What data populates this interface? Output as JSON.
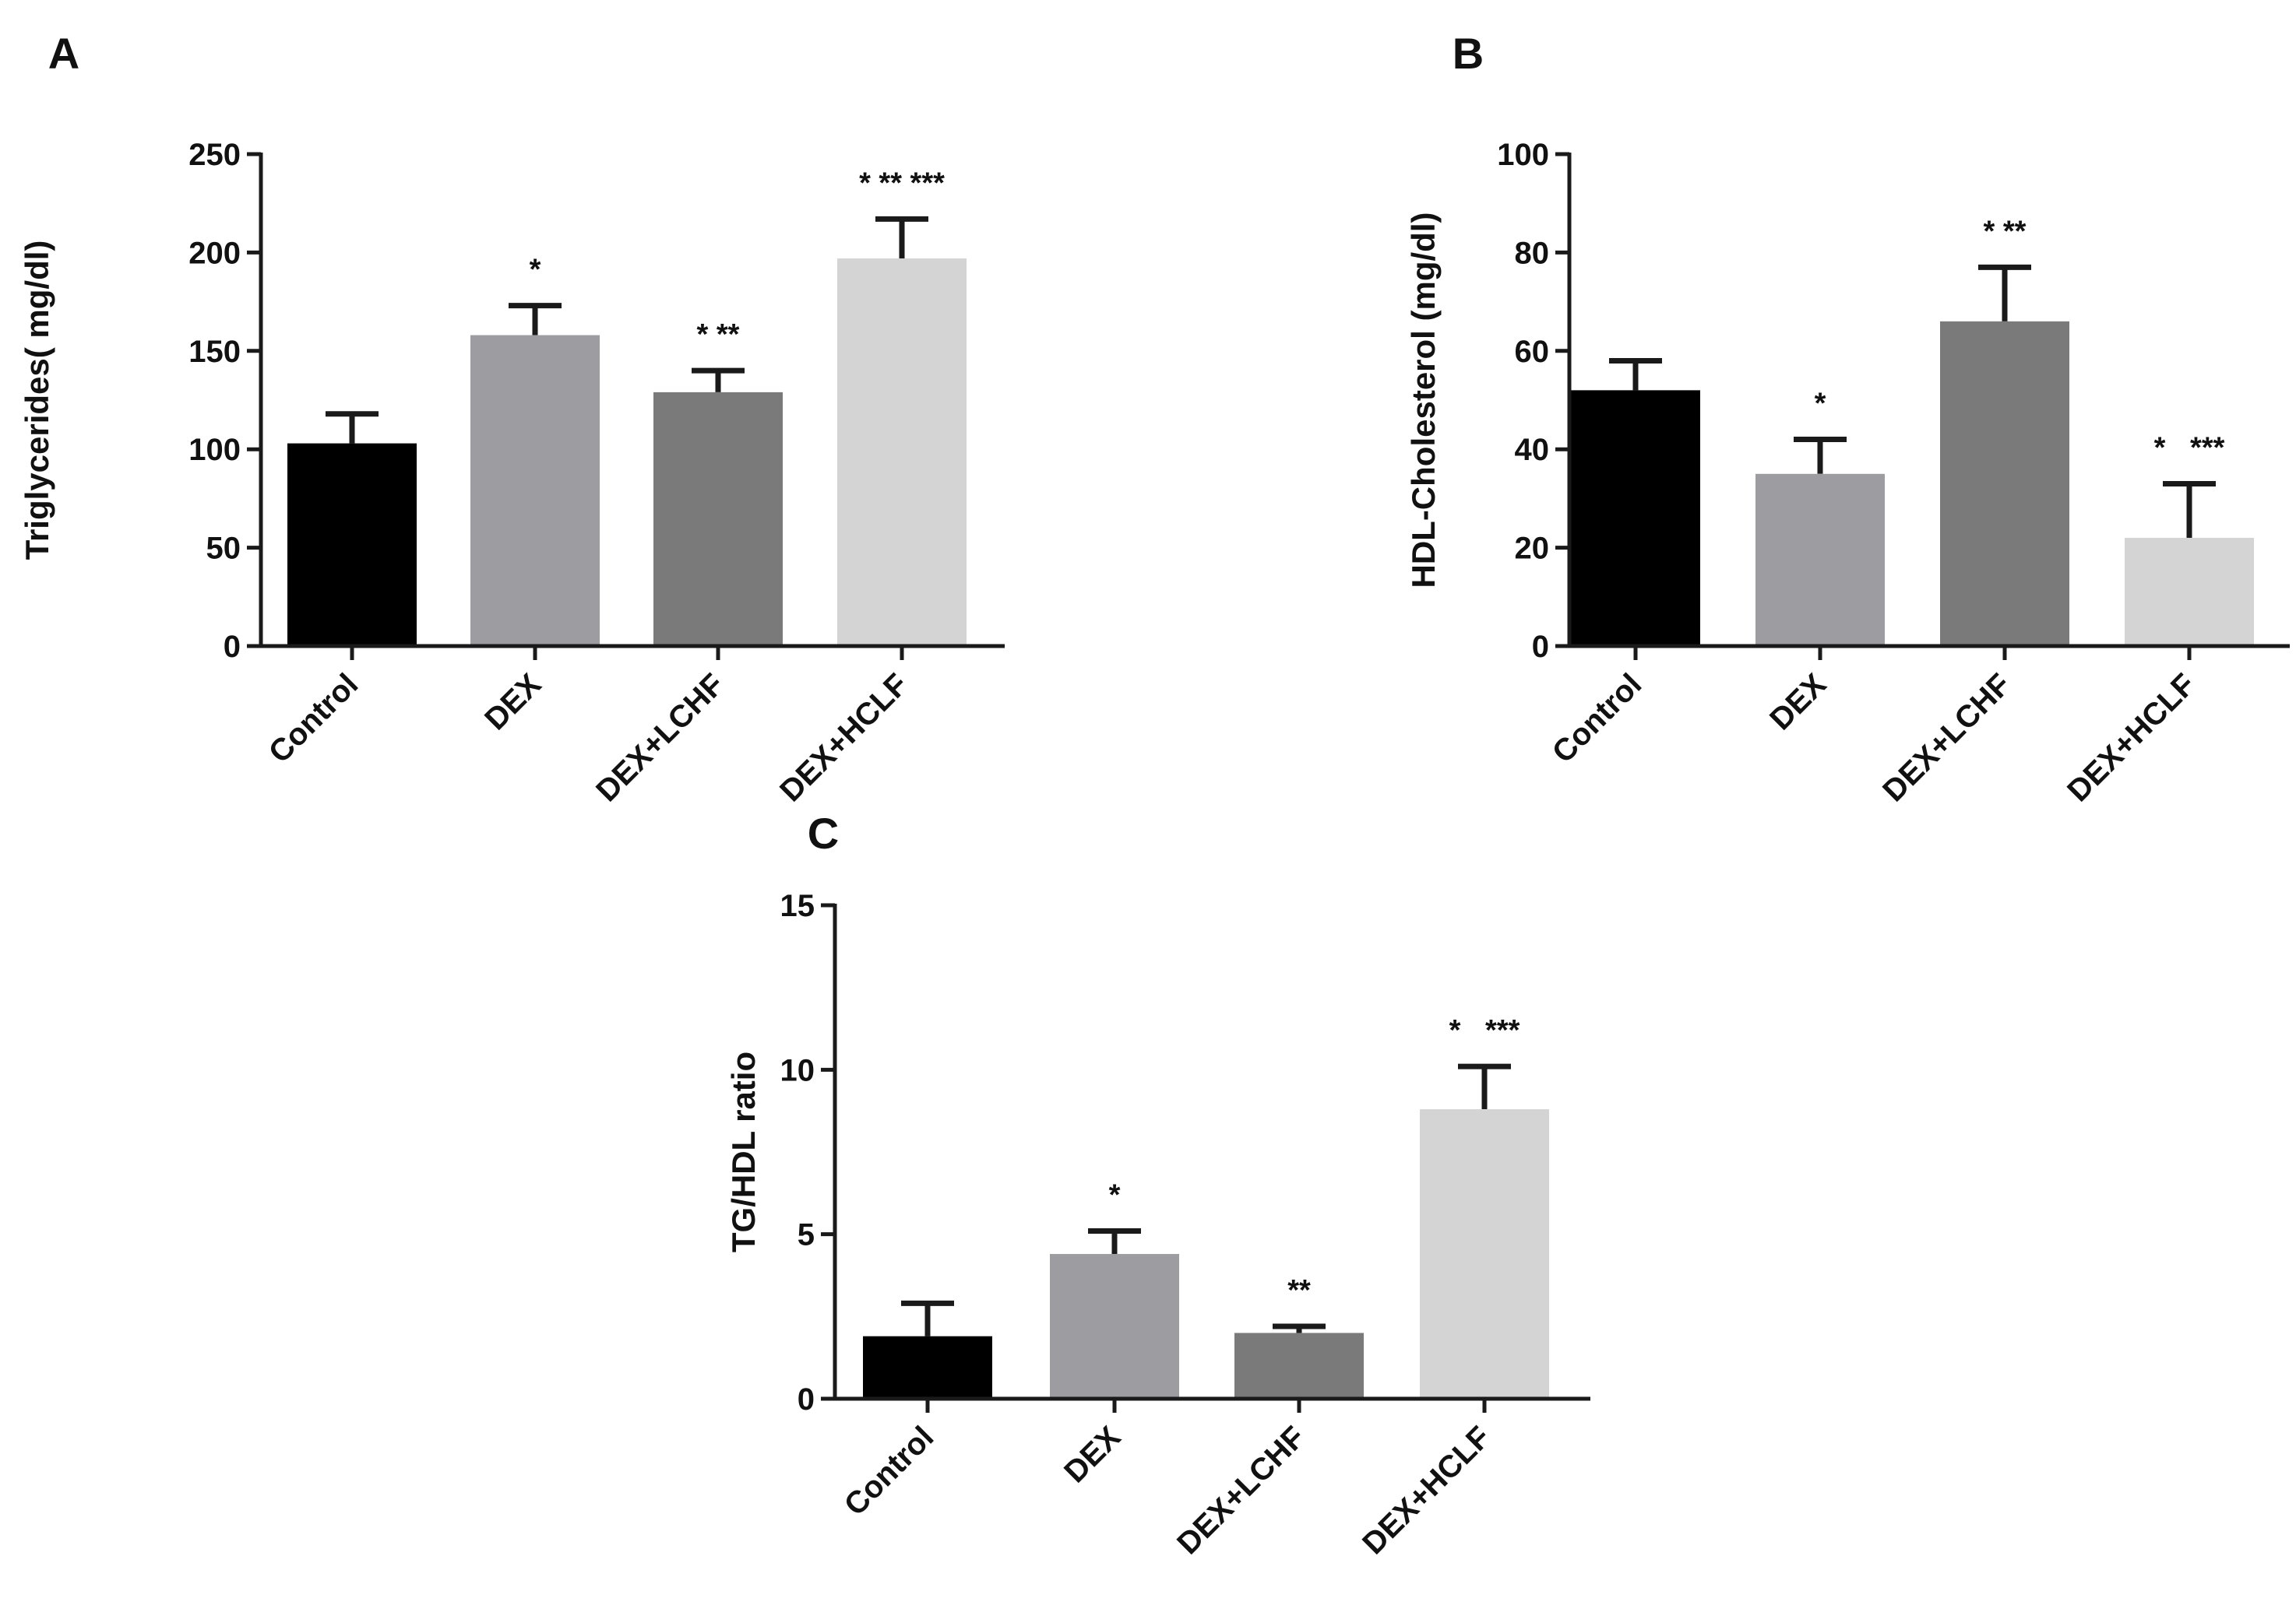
{
  "chart_data": [
    {
      "panel": "A",
      "type": "bar",
      "categories": [
        "Control",
        "DEX",
        "DEX+LCHF",
        "DEX+HCLF"
      ],
      "values": [
        103,
        158,
        129,
        197
      ],
      "errors": [
        15,
        15,
        11,
        20
      ],
      "significance": [
        "",
        "*",
        "* **",
        "* ** ***"
      ],
      "colors": [
        "#000000",
        "#9c9ca1",
        "#7a7a7a",
        "#d4d4d4"
      ],
      "title": "",
      "xlabel": "",
      "ylabel": "Triglycerides( mg/dl)",
      "ylim": [
        0,
        250
      ],
      "yticks": [
        0,
        50,
        100,
        150,
        200,
        250
      ],
      "ytick_labels": [
        "0",
        "50",
        "100",
        "150",
        "200",
        "250"
      ]
    },
    {
      "panel": "B",
      "type": "bar",
      "categories": [
        "Control",
        "DEX",
        "DEX+LCHF",
        "DEX+HCLF"
      ],
      "values": [
        52,
        35,
        66,
        22
      ],
      "errors": [
        6,
        7,
        11,
        11
      ],
      "significance": [
        "",
        "*",
        "* **",
        "*   ***"
      ],
      "colors": [
        "#000000",
        "#9c9ca1",
        "#7a7a7a",
        "#d4d4d4"
      ],
      "title": "",
      "xlabel": "",
      "ylabel": "HDL-Cholesterol (mg/dl)",
      "ylim": [
        0,
        100
      ],
      "yticks": [
        0,
        20,
        40,
        60,
        80,
        100
      ],
      "ytick_labels": [
        "0",
        "20",
        "40",
        "60",
        "80",
        "100"
      ]
    },
    {
      "panel": "C",
      "type": "bar",
      "categories": [
        "Control",
        "DEX",
        "DEX+LCHF",
        "DEX+HCLF"
      ],
      "values": [
        1.9,
        4.4,
        2.0,
        8.8
      ],
      "errors": [
        1.0,
        0.7,
        0.2,
        1.3
      ],
      "significance": [
        "",
        "*",
        "**",
        "*   ***"
      ],
      "colors": [
        "#000000",
        "#9c9ca1",
        "#7a7a7a",
        "#d4d4d4"
      ],
      "title": "",
      "xlabel": "",
      "ylabel": "TG/HDL ratio",
      "ylim": [
        0,
        15
      ],
      "yticks": [
        0,
        5,
        10,
        15
      ],
      "ytick_labels": [
        "0",
        "5",
        "10",
        "15"
      ]
    }
  ]
}
